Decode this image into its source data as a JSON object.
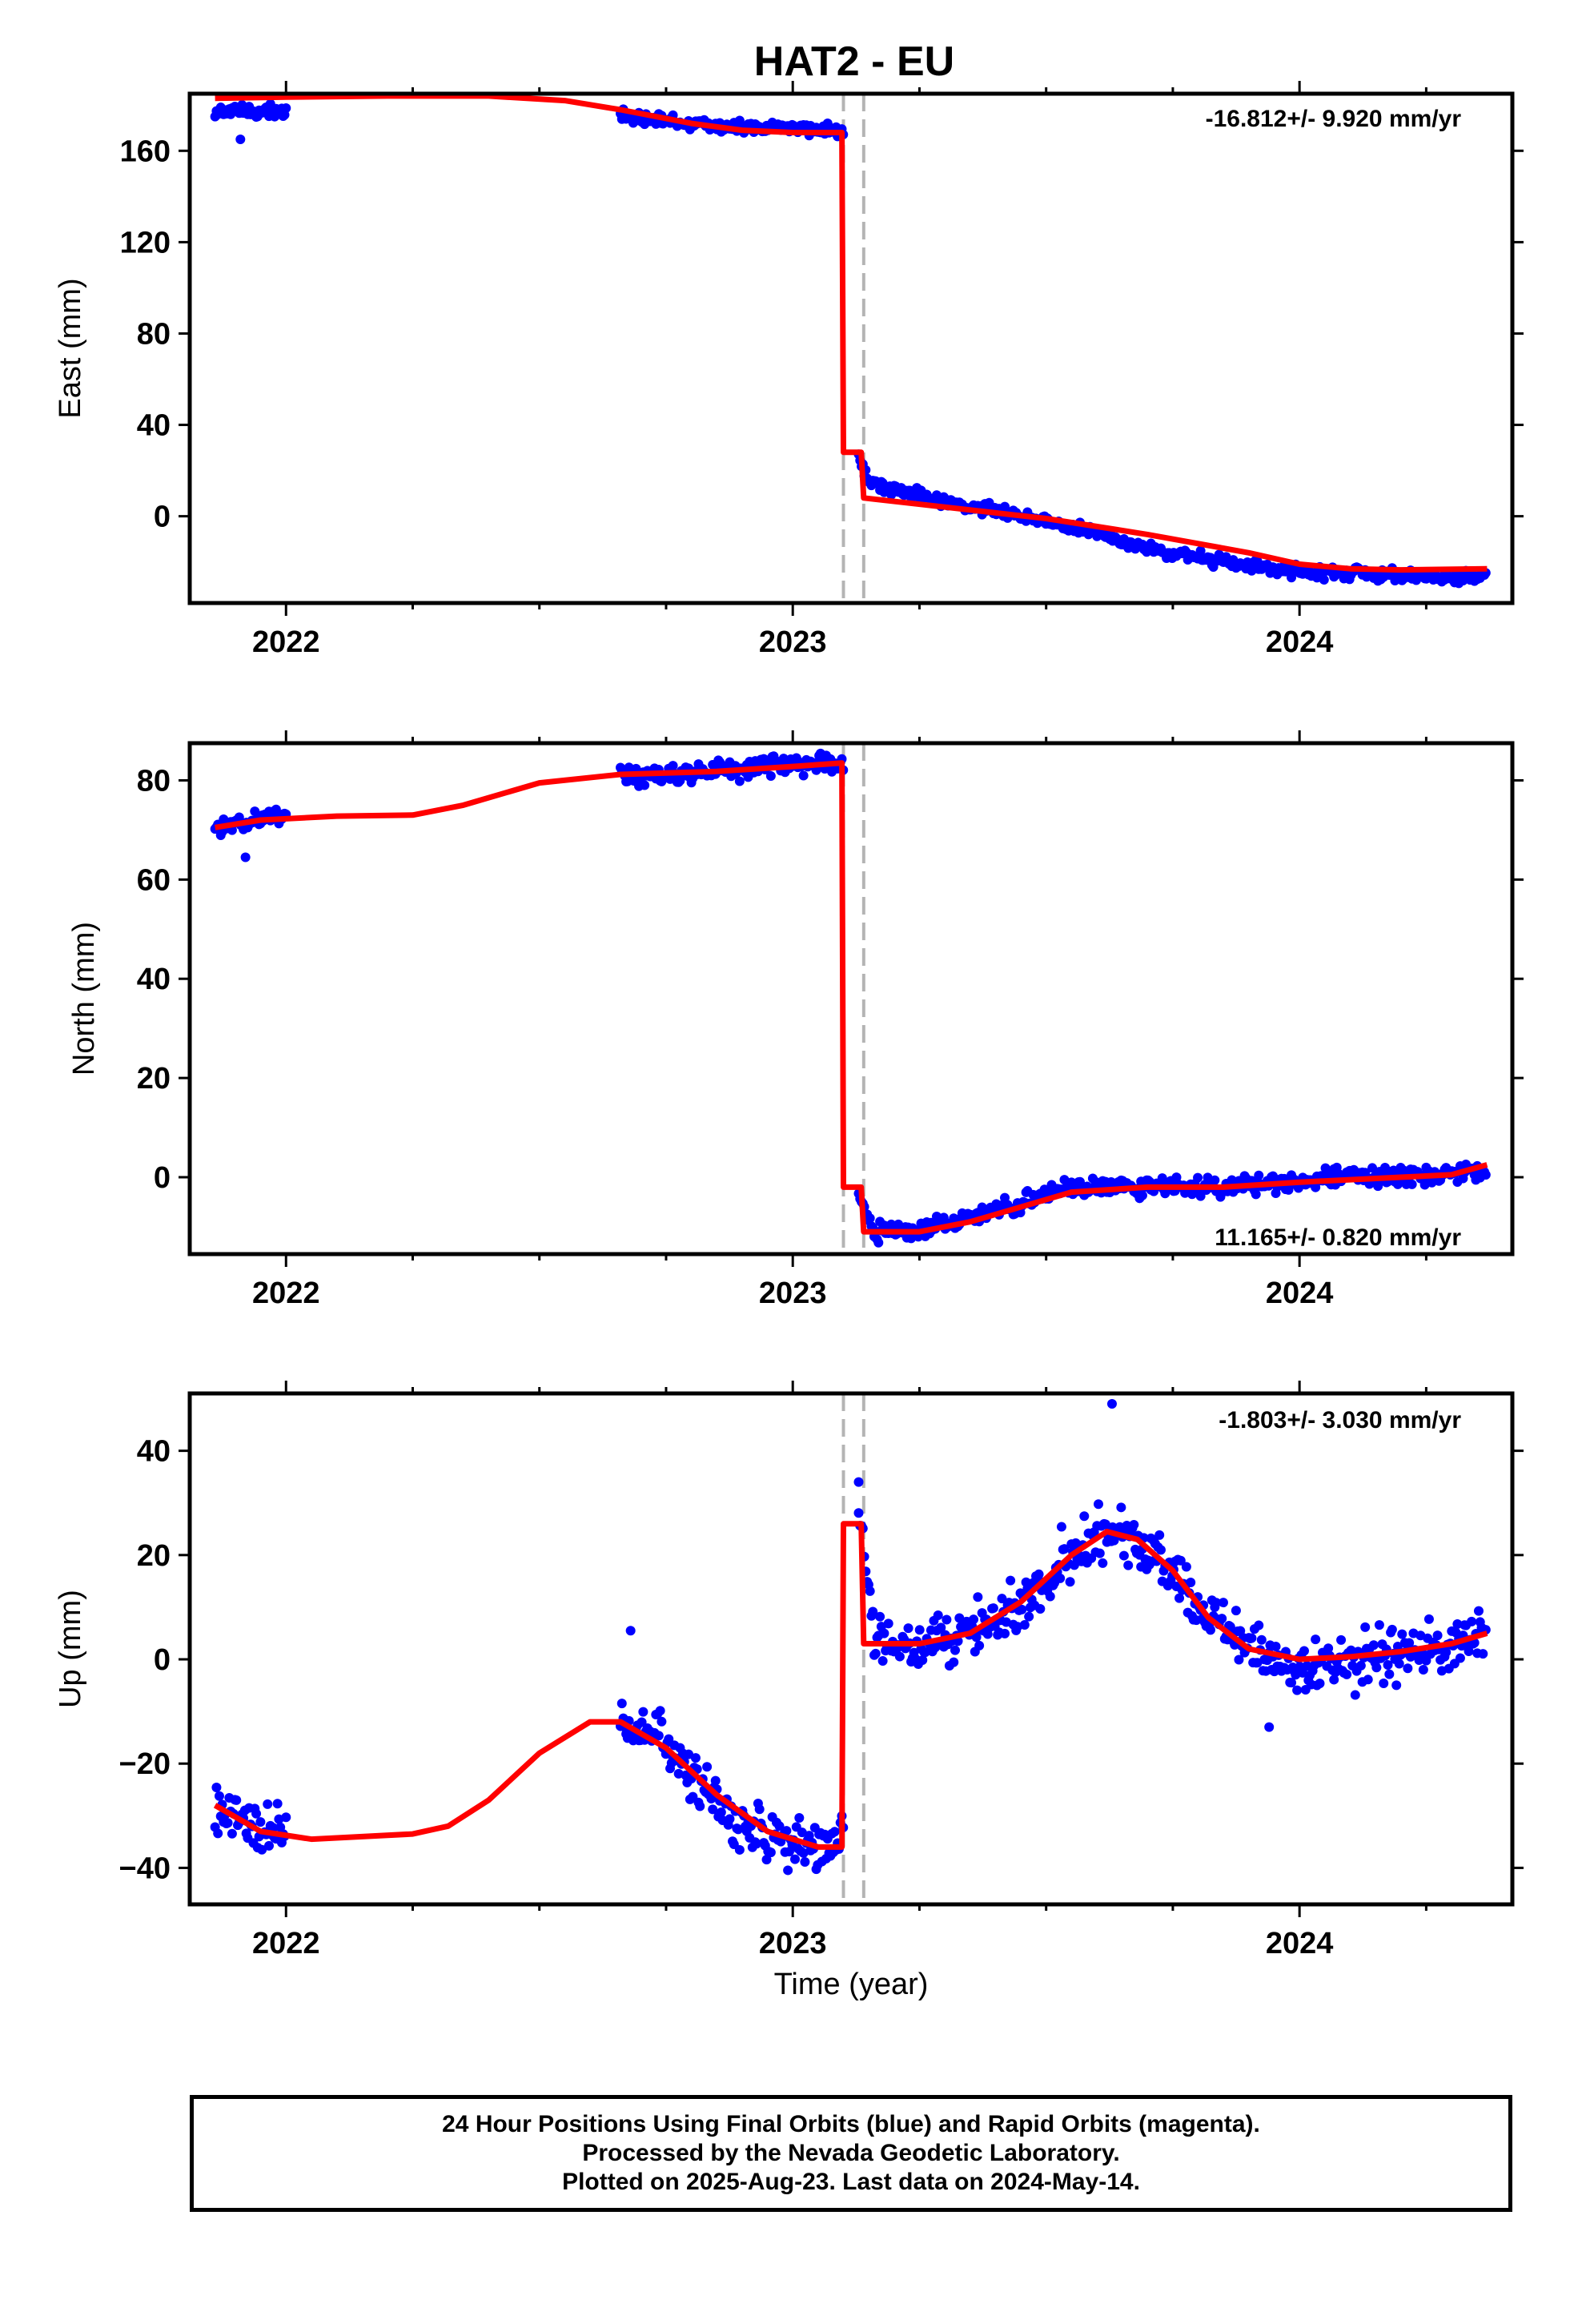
{
  "title": "HAT2 - EU",
  "xlabel": "Time (year)",
  "colors": {
    "data": "#0000ff",
    "fit": "#ff0000",
    "break": "#b4b4b4"
  },
  "caption": {
    "line1": "24 Hour Positions Using Final Orbits (blue) and Rapid Orbits (magenta).",
    "line2": "Processed by the Nevada Geodetic Laboratory.",
    "line3": "Plotted on 2025-Aug-23. Last data on 2024-May-14."
  },
  "chart_data": [
    {
      "type": "scatter",
      "component": "east",
      "ylabel": "East (mm)",
      "rate_text": "-16.812+/- 9.920 mm/yr",
      "xlim": [
        2021.81,
        2024.42
      ],
      "ylim": [
        -38,
        185
      ],
      "xticks": [
        2022,
        2023,
        2024
      ],
      "yticks": [
        0,
        40,
        80,
        120,
        160
      ],
      "breaks": [
        2023.1,
        2023.14
      ],
      "data_segments": [
        {
          "range": [
            2021.86,
            2022.0
          ],
          "points": [
            [
              2021.86,
              177
            ],
            [
              2021.88,
              178
            ],
            [
              2021.9,
              177
            ],
            [
              2021.92,
              178
            ],
            [
              2021.94,
              176
            ],
            [
              2021.96,
              179
            ],
            [
              2021.98,
              177
            ],
            [
              2022.0,
              177
            ]
          ]
        },
        {
          "range": [
            2022.66,
            2023.1
          ],
          "points": [
            [
              2022.66,
              175
            ],
            [
              2022.7,
              174
            ],
            [
              2022.75,
              173
            ],
            [
              2022.8,
              172
            ],
            [
              2022.85,
              171
            ],
            [
              2022.9,
              170
            ],
            [
              2022.95,
              170
            ],
            [
              2023.0,
              170
            ],
            [
              2023.05,
              169
            ],
            [
              2023.1,
              169
            ]
          ]
        },
        {
          "range": [
            2023.13,
            2024.37
          ],
          "points": [
            [
              2023.13,
              28
            ],
            [
              2023.15,
              15
            ],
            [
              2023.2,
              12
            ],
            [
              2023.3,
              6
            ],
            [
              2023.4,
              3
            ],
            [
              2023.5,
              -2
            ],
            [
              2023.6,
              -8
            ],
            [
              2023.7,
              -14
            ],
            [
              2023.8,
              -18
            ],
            [
              2023.9,
              -22
            ],
            [
              2024.0,
              -24
            ],
            [
              2024.1,
              -25
            ],
            [
              2024.2,
              -26
            ],
            [
              2024.3,
              -27
            ],
            [
              2024.37,
              -26
            ]
          ]
        }
      ],
      "fit": [
        [
          2021.86,
          183
        ],
        [
          2022.0,
          183.5
        ],
        [
          2022.2,
          184
        ],
        [
          2022.4,
          184
        ],
        [
          2022.55,
          182
        ],
        [
          2022.66,
          178
        ],
        [
          2022.8,
          172
        ],
        [
          2022.9,
          169
        ],
        [
          2023.0,
          168
        ],
        [
          2023.097,
          168
        ],
        [
          2023.1,
          28
        ],
        [
          2023.135,
          28
        ],
        [
          2023.14,
          8
        ],
        [
          2023.3,
          4
        ],
        [
          2023.5,
          -1
        ],
        [
          2023.7,
          -8
        ],
        [
          2023.9,
          -16
        ],
        [
          2024.0,
          -21
        ],
        [
          2024.1,
          -23
        ],
        [
          2024.2,
          -23.5
        ],
        [
          2024.37,
          -23
        ]
      ],
      "outliers": [
        [
          2021.91,
          165
        ]
      ]
    },
    {
      "type": "scatter",
      "component": "north",
      "ylabel": "North (mm)",
      "rate_text": "11.165+/- 0.820 mm/yr",
      "xlim": [
        2021.81,
        2024.42
      ],
      "ylim": [
        -15.5,
        87.5
      ],
      "xticks": [
        2022,
        2023,
        2024
      ],
      "yticks": [
        0,
        20,
        40,
        60,
        80
      ],
      "breaks": [
        2023.1,
        2023.14
      ],
      "data_segments": [
        {
          "range": [
            2021.86,
            2022.0
          ],
          "points": [
            [
              2021.86,
              71.5
            ],
            [
              2021.9,
              71
            ],
            [
              2021.94,
              72
            ],
            [
              2021.98,
              73
            ],
            [
              2022.0,
              73
            ]
          ]
        },
        {
          "range": [
            2022.66,
            2023.1
          ],
          "points": [
            [
              2022.66,
              81
            ],
            [
              2022.75,
              81
            ],
            [
              2022.85,
              82
            ],
            [
              2022.95,
              83
            ],
            [
              2023.05,
              83.5
            ],
            [
              2023.1,
              83.5
            ]
          ]
        },
        {
          "range": [
            2023.13,
            2024.37
          ],
          "points": [
            [
              2023.13,
              -3
            ],
            [
              2023.16,
              -11
            ],
            [
              2023.25,
              -11
            ],
            [
              2023.35,
              -8
            ],
            [
              2023.45,
              -5
            ],
            [
              2023.55,
              -2
            ],
            [
              2023.65,
              -2
            ],
            [
              2023.75,
              -2
            ],
            [
              2023.85,
              -2
            ],
            [
              2023.95,
              -1
            ],
            [
              2024.05,
              0
            ],
            [
              2024.15,
              0
            ],
            [
              2024.25,
              0
            ],
            [
              2024.37,
              2
            ]
          ]
        }
      ],
      "fit": [
        [
          2021.86,
          70.5
        ],
        [
          2021.95,
          72
        ],
        [
          2022.1,
          72.8
        ],
        [
          2022.25,
          73
        ],
        [
          2022.35,
          75
        ],
        [
          2022.5,
          79.5
        ],
        [
          2022.66,
          81.2
        ],
        [
          2022.85,
          81.8
        ],
        [
          2023.0,
          82.8
        ],
        [
          2023.097,
          83.5
        ],
        [
          2023.1,
          -2
        ],
        [
          2023.135,
          -2
        ],
        [
          2023.14,
          -11
        ],
        [
          2023.25,
          -11
        ],
        [
          2023.35,
          -9
        ],
        [
          2023.45,
          -6
        ],
        [
          2023.55,
          -3
        ],
        [
          2023.7,
          -2
        ],
        [
          2023.85,
          -2
        ],
        [
          2024.0,
          -1
        ],
        [
          2024.1,
          -0.5
        ],
        [
          2024.2,
          0
        ],
        [
          2024.3,
          0.5
        ],
        [
          2024.37,
          2.5
        ]
      ],
      "outliers": [
        [
          2021.92,
          64.5
        ]
      ]
    },
    {
      "type": "scatter",
      "component": "up",
      "ylabel": "Up (mm)",
      "rate_text": "-1.803+/- 3.030 mm/yr",
      "xlim": [
        2021.81,
        2024.42
      ],
      "ylim": [
        -47,
        51
      ],
      "xticks": [
        2022,
        2023,
        2024
      ],
      "yticks": [
        -40,
        -20,
        0,
        20,
        40
      ],
      "breaks": [
        2023.1,
        2023.14
      ],
      "data_segments": [
        {
          "range": [
            2021.86,
            2022.0
          ],
          "points": [
            [
              2021.86,
              -29
            ],
            [
              2021.9,
              -30
            ],
            [
              2021.94,
              -32
            ],
            [
              2021.98,
              -33
            ],
            [
              2022.0,
              -33
            ]
          ]
        },
        {
          "range": [
            2022.66,
            2023.1
          ],
          "points": [
            [
              2022.66,
              -14
            ],
            [
              2022.72,
              -14
            ],
            [
              2022.78,
              -20
            ],
            [
              2022.84,
              -27
            ],
            [
              2022.9,
              -32
            ],
            [
              2022.96,
              -35
            ],
            [
              2023.02,
              -36
            ],
            [
              2023.08,
              -35
            ],
            [
              2023.1,
              -33
            ]
          ]
        },
        {
          "range": [
            2023.13,
            2024.37
          ],
          "points": [
            [
              2023.13,
              28
            ],
            [
              2023.16,
              3
            ],
            [
              2023.25,
              3
            ],
            [
              2023.35,
              5
            ],
            [
              2023.45,
              11
            ],
            [
              2023.55,
              21
            ],
            [
              2023.62,
              25
            ],
            [
              2023.68,
              23
            ],
            [
              2023.75,
              17
            ],
            [
              2023.82,
              8
            ],
            [
              2023.9,
              2
            ],
            [
              2024.0,
              -2
            ],
            [
              2024.1,
              -1
            ],
            [
              2024.2,
              1
            ],
            [
              2024.3,
              4
            ],
            [
              2024.37,
              6
            ]
          ]
        }
      ],
      "fit": [
        [
          2021.86,
          -28
        ],
        [
          2021.95,
          -33
        ],
        [
          2022.05,
          -34.5
        ],
        [
          2022.15,
          -34
        ],
        [
          2022.25,
          -33.5
        ],
        [
          2022.32,
          -32
        ],
        [
          2022.4,
          -27
        ],
        [
          2022.5,
          -18
        ],
        [
          2022.6,
          -12
        ],
        [
          2022.66,
          -12
        ],
        [
          2022.75,
          -17
        ],
        [
          2022.85,
          -26
        ],
        [
          2022.95,
          -33
        ],
        [
          2023.05,
          -36
        ],
        [
          2023.097,
          -36
        ],
        [
          2023.1,
          26
        ],
        [
          2023.135,
          26
        ],
        [
          2023.14,
          3
        ],
        [
          2023.25,
          3
        ],
        [
          2023.35,
          5
        ],
        [
          2023.45,
          11
        ],
        [
          2023.55,
          20
        ],
        [
          2023.62,
          24.5
        ],
        [
          2023.68,
          23
        ],
        [
          2023.75,
          17
        ],
        [
          2023.82,
          8
        ],
        [
          2023.9,
          2
        ],
        [
          2024.0,
          0
        ],
        [
          2024.1,
          0.5
        ],
        [
          2024.2,
          1.5
        ],
        [
          2024.3,
          3
        ],
        [
          2024.37,
          5
        ]
      ],
      "outliers": [
        [
          2022.68,
          5.5
        ],
        [
          2023.63,
          49
        ],
        [
          2023.13,
          34
        ],
        [
          2023.94,
          -13
        ]
      ]
    }
  ]
}
